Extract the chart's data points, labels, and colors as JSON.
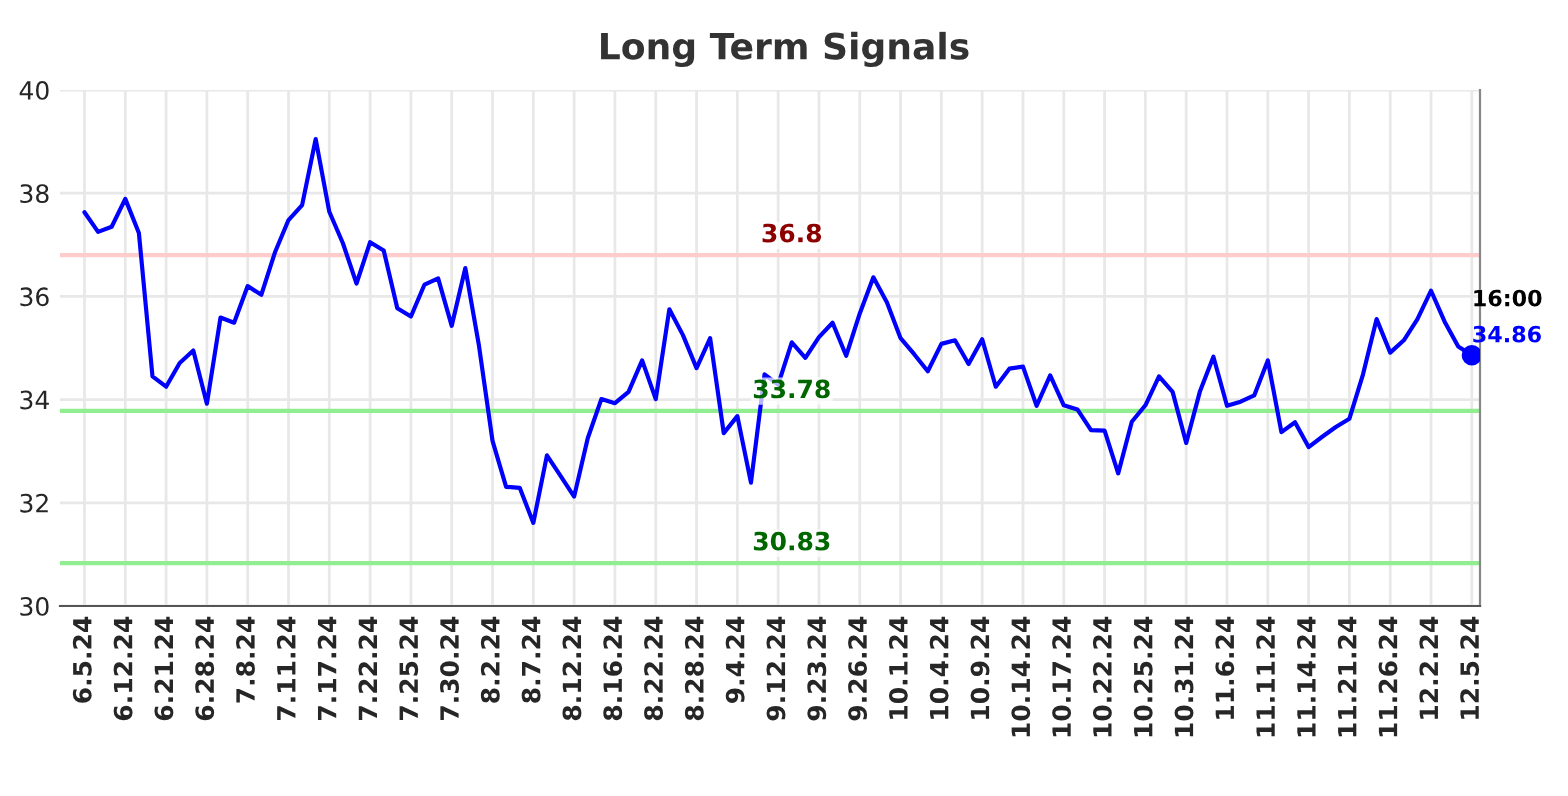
{
  "chart_data": {
    "type": "line",
    "title": "Long Term Signals",
    "categories": [
      "6.5.24",
      null,
      null,
      "6.12.24",
      null,
      null,
      "6.21.24",
      null,
      null,
      "6.28.24",
      null,
      null,
      "7.8.24",
      null,
      null,
      "7.11.24",
      null,
      null,
      "7.17.24",
      null,
      null,
      "7.22.24",
      null,
      null,
      "7.25.24",
      null,
      null,
      "7.30.24",
      null,
      null,
      "8.2.24",
      null,
      null,
      "8.7.24",
      null,
      null,
      "8.12.24",
      null,
      null,
      "8.16.24",
      null,
      null,
      "8.22.24",
      null,
      null,
      "8.28.24",
      null,
      null,
      "9.4.24",
      null,
      null,
      "9.12.24",
      null,
      null,
      "9.23.24",
      null,
      null,
      "9.26.24",
      null,
      null,
      "10.1.24",
      null,
      null,
      "10.4.24",
      null,
      null,
      "10.9.24",
      null,
      null,
      "10.14.24",
      null,
      null,
      "10.17.24",
      null,
      null,
      "10.22.24",
      null,
      null,
      "10.25.24",
      null,
      null,
      "10.31.24",
      null,
      null,
      "11.6.24",
      null,
      null,
      "11.11.24",
      null,
      null,
      "11.14.24",
      null,
      null,
      "11.21.24",
      null,
      null,
      "11.26.24",
      null,
      null,
      "12.2.24",
      null,
      null,
      "12.5.24"
    ],
    "series": [
      {
        "color": "#0000ff",
        "values": [
          37.63,
          37.25,
          37.35,
          37.89,
          37.23,
          34.45,
          34.25,
          34.71,
          34.95,
          33.92,
          35.59,
          35.49,
          36.2,
          36.03,
          36.85,
          37.48,
          37.77,
          39.05,
          37.64,
          37.03,
          36.25,
          37.05,
          36.89,
          35.77,
          35.61,
          36.23,
          36.35,
          35.43,
          36.55,
          35.05,
          33.2,
          32.31,
          32.29,
          31.61,
          32.92,
          32.52,
          32.12,
          33.25,
          34.01,
          33.93,
          34.15,
          34.76,
          34.01,
          35.75,
          35.25,
          34.61,
          35.19,
          33.35,
          33.68,
          32.39,
          34.49,
          34.29,
          35.11,
          34.81,
          35.21,
          35.49,
          34.85,
          35.67,
          36.37,
          35.88,
          35.19,
          34.88,
          34.55,
          35.08,
          35.15,
          34.69,
          35.17,
          34.25,
          34.6,
          34.64,
          33.88,
          34.47,
          33.89,
          33.81,
          33.41,
          33.4,
          32.57,
          33.57,
          33.89,
          34.45,
          34.15,
          33.16,
          34.15,
          34.83,
          33.88,
          33.96,
          34.08,
          34.76,
          33.37,
          33.56,
          33.08,
          33.28,
          33.47,
          33.63,
          34.49,
          35.56,
          34.91,
          35.15,
          35.56,
          36.11,
          35.51,
          35.03,
          34.86
        ]
      },
      {
        "type": "scatter",
        "color": "#0000ff",
        "marker": "circle",
        "x": [
          "12.5.24"
        ],
        "values": [
          34.86
        ]
      }
    ],
    "ylim": [
      30,
      40
    ],
    "yticks": [
      30,
      32,
      34,
      36,
      38,
      40
    ],
    "grid": true,
    "marker": "none",
    "line_style": "solid",
    "ref_lines": [
      {
        "axis": "y",
        "value": 36.8,
        "label": "36.8",
        "color": "#ffcccc"
      },
      {
        "axis": "y",
        "value": 33.78,
        "label": "33.78",
        "color": "#90ee90"
      },
      {
        "axis": "y",
        "value": 30.83,
        "label": "30.83",
        "color": "#90ee90"
      }
    ],
    "annotations": [
      {
        "text": "16:00",
        "x": "12.5.24",
        "y": 34.86
      },
      {
        "text": "34.86",
        "x": "12.5.24",
        "y": 34.86
      }
    ]
  }
}
